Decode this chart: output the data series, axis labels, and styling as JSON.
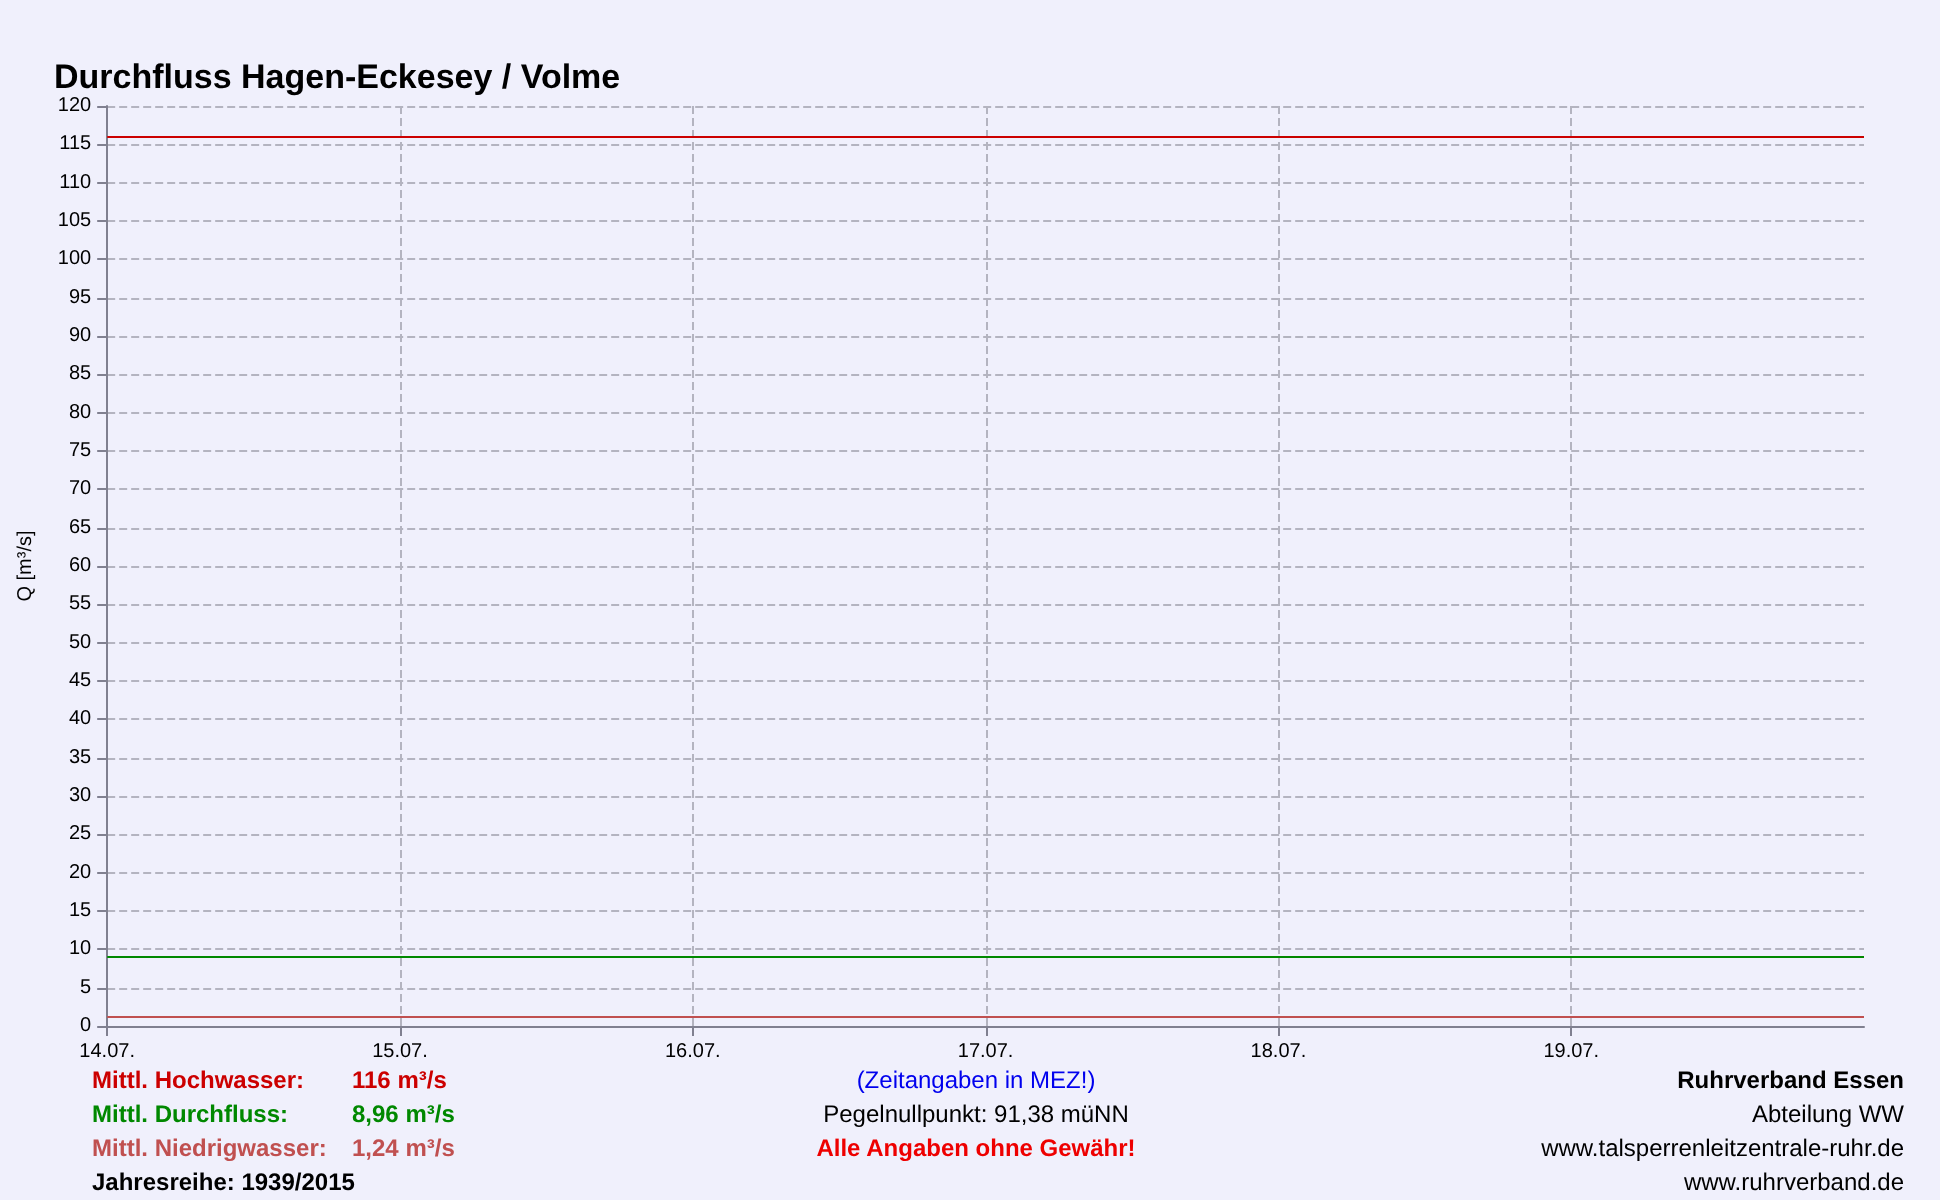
{
  "chart_data": {
    "type": "line",
    "title": "Durchfluss Hagen-Eckesey / Volme",
    "ylabel": "Q [m³/s]",
    "xlim": [
      "--07-14",
      "--07-20"
    ],
    "xticks": [
      {
        "value": "--07-14",
        "label": "14.07."
      },
      {
        "value": "--07-15",
        "label": "15.07."
      },
      {
        "value": "--07-16",
        "label": "16.07."
      },
      {
        "value": "--07-17",
        "label": "17.07."
      },
      {
        "value": "--07-18",
        "label": "18.07."
      },
      {
        "value": "--07-19",
        "label": "19.07."
      }
    ],
    "ylim": [
      0,
      120
    ],
    "yticks": [
      0,
      5,
      10,
      15,
      20,
      25,
      30,
      35,
      40,
      45,
      50,
      55,
      60,
      65,
      70,
      75,
      80,
      85,
      90,
      95,
      100,
      105,
      110,
      115,
      120
    ],
    "grid": true,
    "ref_lines": [
      {
        "axis": "y",
        "value": 116,
        "label": "Mittl. Hochwasser:",
        "color": "#cc0000"
      },
      {
        "axis": "y",
        "value": 8.96,
        "label": "Mittl. Durchfluss:",
        "color": "#008800"
      },
      {
        "axis": "y",
        "value": 1.24,
        "label": "Mittl. Niedrigwasser:",
        "color": "#c05050"
      }
    ],
    "annotations": [
      "116 m³/s",
      "8,96 m³/s",
      "1,24 m³/s",
      "Jahresreihe: 1939/2015",
      "(Zeitangaben in MEZ!)",
      "Pegelnullpunkt: 91,38 müNN",
      "Alle Angaben ohne Gewähr!",
      "Ruhrverband Essen",
      "Abteilung WW",
      "www.talsperrenleitzentrale-ruhr.de",
      "www.ruhrverband.de"
    ]
  }
}
